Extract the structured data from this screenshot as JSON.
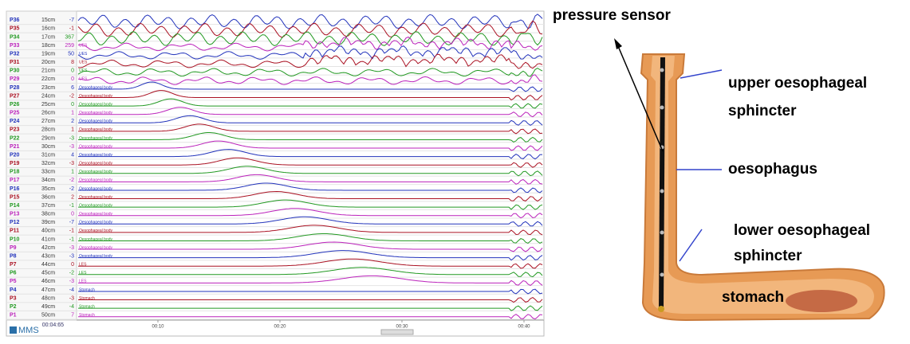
{
  "manometry": {
    "channels": [
      {
        "name": "P36",
        "depth": "15cm",
        "value": -7
      },
      {
        "name": "P35",
        "depth": "16cm",
        "value": -1
      },
      {
        "name": "P34",
        "depth": "17cm",
        "value": 367
      },
      {
        "name": "P33",
        "depth": "18cm",
        "value": 259,
        "region": "UES"
      },
      {
        "name": "P32",
        "depth": "19cm",
        "value": 50,
        "region": "UES"
      },
      {
        "name": "P31",
        "depth": "20cm",
        "value": 8,
        "region": "UES"
      },
      {
        "name": "P30",
        "depth": "21cm",
        "value": 0,
        "region": "UES"
      },
      {
        "name": "P29",
        "depth": "22cm",
        "value": 0,
        "region": "UES"
      },
      {
        "name": "P28",
        "depth": "23cm",
        "value": 6,
        "region": "Oesophageal body"
      },
      {
        "name": "P27",
        "depth": "24cm",
        "value": -2,
        "region": "Oesophageal body"
      },
      {
        "name": "P26",
        "depth": "25cm",
        "value": 0,
        "region": "Oesophageal body"
      },
      {
        "name": "P25",
        "depth": "26cm",
        "value": 1,
        "region": "Oesophageal body"
      },
      {
        "name": "P24",
        "depth": "27cm",
        "value": 2,
        "region": "Oesophageal body"
      },
      {
        "name": "P23",
        "depth": "28cm",
        "value": 1,
        "region": "Oesophageal body"
      },
      {
        "name": "P22",
        "depth": "29cm",
        "value": -3,
        "region": "Oesophageal body"
      },
      {
        "name": "P21",
        "depth": "30cm",
        "value": -3,
        "region": "Oesophageal body"
      },
      {
        "name": "P20",
        "depth": "31cm",
        "value": 4,
        "region": "Oesophageal body"
      },
      {
        "name": "P19",
        "depth": "32cm",
        "value": -3,
        "region": "Oesophageal body"
      },
      {
        "name": "P18",
        "depth": "33cm",
        "value": 1,
        "region": "Oesophageal body"
      },
      {
        "name": "P17",
        "depth": "34cm",
        "value": -2,
        "region": "Oesophageal body"
      },
      {
        "name": "P16",
        "depth": "35cm",
        "value": -2,
        "region": "Oesophageal body"
      },
      {
        "name": "P15",
        "depth": "36cm",
        "value": 2,
        "region": "Oesophageal body"
      },
      {
        "name": "P14",
        "depth": "37cm",
        "value": -1,
        "region": "Oesophageal body"
      },
      {
        "name": "P13",
        "depth": "38cm",
        "value": 0,
        "region": "Oesophageal body"
      },
      {
        "name": "P12",
        "depth": "39cm",
        "value": -7,
        "region": "Oesophageal body"
      },
      {
        "name": "P11",
        "depth": "40cm",
        "value": -1,
        "region": "Oesophageal body"
      },
      {
        "name": "P10",
        "depth": "41cm",
        "value": -1,
        "region": "Oesophageal body"
      },
      {
        "name": "P9",
        "depth": "42cm",
        "value": -3,
        "region": "Oesophageal body"
      },
      {
        "name": "P8",
        "depth": "43cm",
        "value": -3,
        "region": "Oesophageal body"
      },
      {
        "name": "P7",
        "depth": "44cm",
        "value": 0,
        "region": "LES"
      },
      {
        "name": "P6",
        "depth": "45cm",
        "value": -2,
        "region": "LES"
      },
      {
        "name": "P5",
        "depth": "46cm",
        "value": -3,
        "region": "LES"
      },
      {
        "name": "P4",
        "depth": "47cm",
        "value": -4,
        "region": "Stomach"
      },
      {
        "name": "P3",
        "depth": "48cm",
        "value": -3,
        "region": "Stomach"
      },
      {
        "name": "P2",
        "depth": "49cm",
        "value": -4,
        "region": "Stomach"
      },
      {
        "name": "P1",
        "depth": "50cm",
        "value": 7,
        "region": "Stomach"
      }
    ],
    "time_start": "00:04:65",
    "time_labels": [
      "00:10",
      "00:20",
      "00:30",
      "00:40"
    ],
    "logo": "MMS"
  },
  "diagram": {
    "sensor_label": "pressure sensor",
    "upper_sphincter": [
      "upper oesophageal",
      "sphincter"
    ],
    "oesophagus": "oesophagus",
    "lower_sphincter": [
      "lower oesophageal",
      "sphincter"
    ],
    "stomach": "stomach"
  }
}
